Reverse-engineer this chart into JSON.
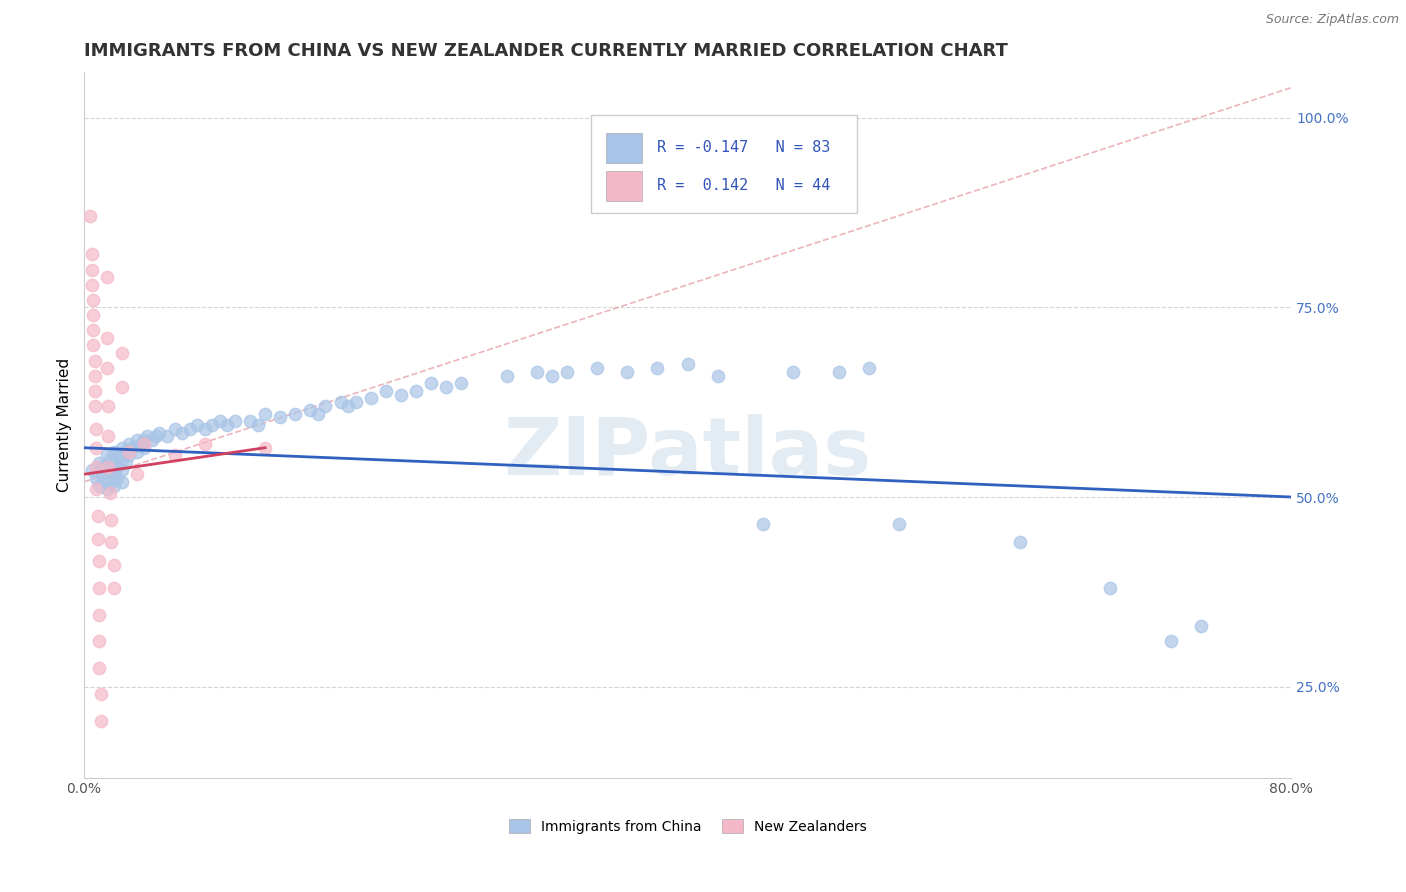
{
  "title": "IMMIGRANTS FROM CHINA VS NEW ZEALANDER CURRENTLY MARRIED CORRELATION CHART",
  "source_text": "Source: ZipAtlas.com",
  "ylabel": "Currently Married",
  "watermark": "ZIPatlas",
  "xlim": [
    0.0,
    0.8
  ],
  "ylim": [
    0.13,
    1.06
  ],
  "blue_color": "#a8c4e6",
  "pink_color": "#f4b8c8",
  "blue_line_color": "#3060c0",
  "pink_line_color": "#d04060",
  "ref_line_color": "#e8a0a8",
  "title_fontsize": 13,
  "label_fontsize": 11,
  "tick_fontsize": 10,
  "blue_scatter": [
    [
      0.005,
      0.535
    ],
    [
      0.008,
      0.525
    ],
    [
      0.01,
      0.545
    ],
    [
      0.01,
      0.515
    ],
    [
      0.012,
      0.54
    ],
    [
      0.012,
      0.53
    ],
    [
      0.015,
      0.555
    ],
    [
      0.015,
      0.54
    ],
    [
      0.015,
      0.52
    ],
    [
      0.015,
      0.51
    ],
    [
      0.018,
      0.55
    ],
    [
      0.018,
      0.535
    ],
    [
      0.018,
      0.52
    ],
    [
      0.02,
      0.56
    ],
    [
      0.02,
      0.545
    ],
    [
      0.02,
      0.53
    ],
    [
      0.02,
      0.515
    ],
    [
      0.022,
      0.555
    ],
    [
      0.022,
      0.54
    ],
    [
      0.022,
      0.525
    ],
    [
      0.025,
      0.565
    ],
    [
      0.025,
      0.55
    ],
    [
      0.025,
      0.535
    ],
    [
      0.025,
      0.52
    ],
    [
      0.028,
      0.56
    ],
    [
      0.028,
      0.545
    ],
    [
      0.03,
      0.57
    ],
    [
      0.03,
      0.555
    ],
    [
      0.032,
      0.565
    ],
    [
      0.035,
      0.575
    ],
    [
      0.035,
      0.56
    ],
    [
      0.038,
      0.57
    ],
    [
      0.04,
      0.575
    ],
    [
      0.04,
      0.565
    ],
    [
      0.042,
      0.58
    ],
    [
      0.045,
      0.575
    ],
    [
      0.048,
      0.58
    ],
    [
      0.05,
      0.585
    ],
    [
      0.055,
      0.58
    ],
    [
      0.06,
      0.59
    ],
    [
      0.065,
      0.585
    ],
    [
      0.07,
      0.59
    ],
    [
      0.075,
      0.595
    ],
    [
      0.08,
      0.59
    ],
    [
      0.085,
      0.595
    ],
    [
      0.09,
      0.6
    ],
    [
      0.095,
      0.595
    ],
    [
      0.1,
      0.6
    ],
    [
      0.11,
      0.6
    ],
    [
      0.115,
      0.595
    ],
    [
      0.12,
      0.61
    ],
    [
      0.13,
      0.605
    ],
    [
      0.14,
      0.61
    ],
    [
      0.15,
      0.615
    ],
    [
      0.155,
      0.61
    ],
    [
      0.16,
      0.62
    ],
    [
      0.17,
      0.625
    ],
    [
      0.175,
      0.62
    ],
    [
      0.18,
      0.625
    ],
    [
      0.19,
      0.63
    ],
    [
      0.2,
      0.64
    ],
    [
      0.21,
      0.635
    ],
    [
      0.22,
      0.64
    ],
    [
      0.23,
      0.65
    ],
    [
      0.24,
      0.645
    ],
    [
      0.25,
      0.65
    ],
    [
      0.28,
      0.66
    ],
    [
      0.3,
      0.665
    ],
    [
      0.31,
      0.66
    ],
    [
      0.32,
      0.665
    ],
    [
      0.34,
      0.67
    ],
    [
      0.36,
      0.665
    ],
    [
      0.38,
      0.67
    ],
    [
      0.4,
      0.675
    ],
    [
      0.42,
      0.66
    ],
    [
      0.45,
      0.465
    ],
    [
      0.47,
      0.665
    ],
    [
      0.5,
      0.665
    ],
    [
      0.52,
      0.67
    ],
    [
      0.54,
      0.465
    ],
    [
      0.62,
      0.44
    ],
    [
      0.68,
      0.38
    ],
    [
      0.72,
      0.31
    ],
    [
      0.74,
      0.33
    ]
  ],
  "pink_scatter": [
    [
      0.004,
      0.87
    ],
    [
      0.005,
      0.82
    ],
    [
      0.005,
      0.8
    ],
    [
      0.005,
      0.78
    ],
    [
      0.006,
      0.76
    ],
    [
      0.006,
      0.74
    ],
    [
      0.006,
      0.72
    ],
    [
      0.006,
      0.7
    ],
    [
      0.007,
      0.68
    ],
    [
      0.007,
      0.66
    ],
    [
      0.007,
      0.64
    ],
    [
      0.007,
      0.62
    ],
    [
      0.008,
      0.59
    ],
    [
      0.008,
      0.565
    ],
    [
      0.008,
      0.54
    ],
    [
      0.008,
      0.51
    ],
    [
      0.009,
      0.475
    ],
    [
      0.009,
      0.445
    ],
    [
      0.01,
      0.415
    ],
    [
      0.01,
      0.38
    ],
    [
      0.01,
      0.345
    ],
    [
      0.01,
      0.31
    ],
    [
      0.01,
      0.275
    ],
    [
      0.011,
      0.24
    ],
    [
      0.011,
      0.205
    ],
    [
      0.015,
      0.79
    ],
    [
      0.015,
      0.71
    ],
    [
      0.015,
      0.67
    ],
    [
      0.016,
      0.62
    ],
    [
      0.016,
      0.58
    ],
    [
      0.016,
      0.54
    ],
    [
      0.017,
      0.505
    ],
    [
      0.018,
      0.47
    ],
    [
      0.018,
      0.44
    ],
    [
      0.02,
      0.41
    ],
    [
      0.02,
      0.38
    ],
    [
      0.025,
      0.69
    ],
    [
      0.025,
      0.645
    ],
    [
      0.03,
      0.56
    ],
    [
      0.035,
      0.53
    ],
    [
      0.04,
      0.57
    ],
    [
      0.06,
      0.555
    ],
    [
      0.08,
      0.57
    ],
    [
      0.12,
      0.565
    ]
  ]
}
